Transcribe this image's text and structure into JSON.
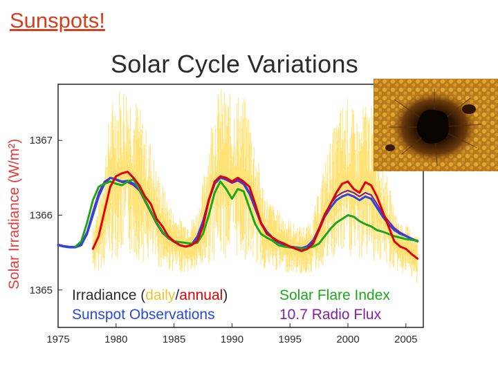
{
  "slide": {
    "title": "Sunspots!",
    "photo_icon": "sunspot-photo-icon"
  },
  "colors": {
    "slide_title": "#d4401e",
    "daily": "#ffd84a",
    "annual": "#e00000",
    "flare": "#1aa81a",
    "sunspot": "#2848e0",
    "radio": "#8020a0",
    "ylabel": "#e63a3a"
  },
  "chart_data": {
    "type": "line",
    "title": "Solar Cycle Variations",
    "ylabel": "Solar Irradiance (W/m²)",
    "xlim": [
      1975,
      2006.5
    ],
    "ylim": [
      1364.5,
      1367.75
    ],
    "xticks": [
      "1975",
      "1980",
      "1985",
      "1990",
      "1995",
      "2000",
      "2005"
    ],
    "yticks": [
      "1365",
      "1366",
      "1367"
    ],
    "legend": {
      "irr_prefix": "Irradiance (",
      "irr_daily": "daily",
      "irr_sep": "/",
      "irr_annual": "annual",
      "irr_suffix": ")",
      "flare": "Solar Flare Index",
      "sunspot": "Sunspot Observations",
      "radio": "10.7 Radio Flux"
    },
    "series": [
      {
        "name": "Irradiance (daily/annual)",
        "key": "annual",
        "x": [
          1978,
          1978.5,
          1979,
          1979.5,
          1980,
          1980.5,
          1981,
          1981.5,
          1982,
          1982.5,
          1983,
          1983.5,
          1984,
          1984.5,
          1985,
          1985.5,
          1986,
          1986.5,
          1987,
          1987.5,
          1988,
          1988.5,
          1989,
          1989.5,
          1990,
          1990.5,
          1991,
          1991.5,
          1992,
          1992.5,
          1993,
          1993.5,
          1994,
          1994.5,
          1995,
          1995.5,
          1996,
          1996.5,
          1997,
          1997.5,
          1998,
          1998.5,
          1999,
          1999.5,
          2000,
          2000.5,
          2001,
          2001.5,
          2002,
          2002.5,
          2003,
          2003.5,
          2004,
          2004.5,
          2005,
          2005.5,
          2006
        ],
        "y": [
          1365.55,
          1365.72,
          1366.05,
          1366.38,
          1366.52,
          1366.56,
          1366.58,
          1366.5,
          1366.4,
          1366.25,
          1366.15,
          1365.95,
          1365.85,
          1365.72,
          1365.65,
          1365.6,
          1365.58,
          1365.6,
          1365.65,
          1365.85,
          1366.2,
          1366.45,
          1366.52,
          1366.5,
          1366.45,
          1366.5,
          1366.45,
          1366.38,
          1366.15,
          1365.9,
          1365.75,
          1365.7,
          1365.65,
          1365.62,
          1365.58,
          1365.55,
          1365.52,
          1365.55,
          1365.62,
          1365.8,
          1366.0,
          1366.15,
          1366.3,
          1366.42,
          1366.45,
          1366.35,
          1366.3,
          1366.44,
          1366.4,
          1366.25,
          1366.05,
          1365.85,
          1365.65,
          1365.58,
          1365.55,
          1365.48,
          1365.42
        ]
      },
      {
        "name": "Solar Flare Index",
        "key": "flare",
        "x": [
          1976.5,
          1977,
          1977.5,
          1978,
          1978.5,
          1979,
          1979.5,
          1980,
          1980.5,
          1981,
          1981.5,
          1982,
          1982.5,
          1983,
          1983.5,
          1984,
          1984.5,
          1985,
          1985.5,
          1986,
          1986.5,
          1987,
          1987.5,
          1988,
          1988.5,
          1989,
          1989.5,
          1990,
          1990.5,
          1991,
          1991.5,
          1992,
          1992.5,
          1993,
          1993.5,
          1994,
          1994.5,
          1995,
          1995.5,
          1996,
          1996.5,
          1997,
          1997.5,
          1998,
          1998.5,
          1999,
          1999.5,
          2000,
          2000.5,
          2001,
          2001.5,
          2002,
          2002.5,
          2003,
          2003.5,
          2004,
          2004.5,
          2005,
          2005.5,
          2006
        ],
        "y": [
          1365.58,
          1365.65,
          1365.9,
          1366.2,
          1366.38,
          1366.42,
          1366.45,
          1366.42,
          1366.4,
          1366.45,
          1366.48,
          1366.35,
          1366.2,
          1366.05,
          1365.9,
          1365.78,
          1365.7,
          1365.65,
          1365.64,
          1365.63,
          1365.62,
          1365.63,
          1365.75,
          1366.0,
          1366.3,
          1366.45,
          1366.35,
          1366.22,
          1366.35,
          1366.32,
          1366.1,
          1365.88,
          1365.75,
          1365.7,
          1365.66,
          1365.6,
          1365.58,
          1365.57,
          1365.56,
          1365.55,
          1365.56,
          1365.58,
          1365.62,
          1365.72,
          1365.82,
          1365.9,
          1365.95,
          1366.0,
          1365.98,
          1365.92,
          1365.88,
          1365.85,
          1365.8,
          1365.78,
          1365.75,
          1365.72,
          1365.7,
          1365.68,
          1365.67,
          1365.66
        ]
      },
      {
        "name": "Sunspot Observations",
        "key": "sunspot",
        "x": [
          1975,
          1975.5,
          1976,
          1976.5,
          1977,
          1977.5,
          1978,
          1978.5,
          1979,
          1979.5,
          1980,
          1980.5,
          1981,
          1981.5,
          1982,
          1982.5,
          1983,
          1983.5,
          1984,
          1984.5,
          1985,
          1985.5,
          1986,
          1986.5,
          1987,
          1987.5,
          1988,
          1988.5,
          1989,
          1989.5,
          1990,
          1990.5,
          1991,
          1991.5,
          1992,
          1992.5,
          1993,
          1993.5,
          1994,
          1994.5,
          1995,
          1995.5,
          1996,
          1996.5,
          1997,
          1997.5,
          1998,
          1998.5,
          1999,
          1999.5,
          2000,
          2000.5,
          2001,
          2001.5,
          2002,
          2002.5,
          2003,
          2003.5,
          2004,
          2004.5,
          2005,
          2005.5,
          2006
        ],
        "y": [
          1365.6,
          1365.58,
          1365.57,
          1365.57,
          1365.6,
          1365.75,
          1366.0,
          1366.25,
          1366.42,
          1366.5,
          1366.48,
          1366.45,
          1366.46,
          1366.42,
          1366.35,
          1366.2,
          1366.05,
          1365.9,
          1365.78,
          1365.7,
          1365.65,
          1365.6,
          1365.58,
          1365.6,
          1365.7,
          1365.9,
          1366.2,
          1366.42,
          1366.5,
          1366.48,
          1366.45,
          1366.48,
          1366.43,
          1366.3,
          1366.1,
          1365.9,
          1365.78,
          1365.7,
          1365.64,
          1365.6,
          1365.58,
          1365.57,
          1365.56,
          1365.58,
          1365.65,
          1365.8,
          1365.98,
          1366.1,
          1366.2,
          1366.25,
          1366.28,
          1366.25,
          1366.2,
          1366.25,
          1366.22,
          1366.1,
          1365.98,
          1365.88,
          1365.8,
          1365.75,
          1365.72,
          1365.68,
          1365.65
        ]
      },
      {
        "name": "10.7 Radio Flux",
        "key": "radio",
        "x": [
          1975,
          1975.5,
          1976,
          1976.5,
          1977,
          1977.5,
          1978,
          1978.5,
          1979,
          1979.5,
          1980,
          1980.5,
          1981,
          1981.5,
          1982,
          1982.5,
          1983,
          1983.5,
          1984,
          1984.5,
          1985,
          1985.5,
          1986,
          1986.5,
          1987,
          1987.5,
          1988,
          1988.5,
          1989,
          1989.5,
          1990,
          1990.5,
          1991,
          1991.5,
          1992,
          1992.5,
          1993,
          1993.5,
          1994,
          1994.5,
          1995,
          1995.5,
          1996,
          1996.5,
          1997,
          1997.5,
          1998,
          1998.5,
          1999,
          1999.5,
          2000,
          2000.5,
          2001,
          2001.5,
          2002,
          2002.5,
          2003,
          2003.5,
          2004,
          2004.5,
          2005,
          2005.5,
          2006
        ],
        "y": [
          1365.61,
          1365.59,
          1365.58,
          1365.58,
          1365.62,
          1365.78,
          1366.05,
          1366.3,
          1366.45,
          1366.5,
          1366.47,
          1366.44,
          1366.44,
          1366.4,
          1366.33,
          1366.18,
          1366.03,
          1365.88,
          1365.76,
          1365.69,
          1365.64,
          1365.6,
          1365.58,
          1365.61,
          1365.72,
          1365.93,
          1366.22,
          1366.43,
          1366.5,
          1366.47,
          1366.43,
          1366.46,
          1366.41,
          1366.28,
          1366.08,
          1365.88,
          1365.76,
          1365.69,
          1365.63,
          1365.6,
          1365.58,
          1365.57,
          1365.56,
          1365.59,
          1365.67,
          1365.83,
          1366.02,
          1366.15,
          1366.25,
          1366.3,
          1366.33,
          1366.3,
          1366.25,
          1366.3,
          1366.27,
          1366.15,
          1366.02,
          1365.92,
          1365.83,
          1365.77,
          1365.73,
          1365.69,
          1365.66
        ]
      }
    ]
  }
}
